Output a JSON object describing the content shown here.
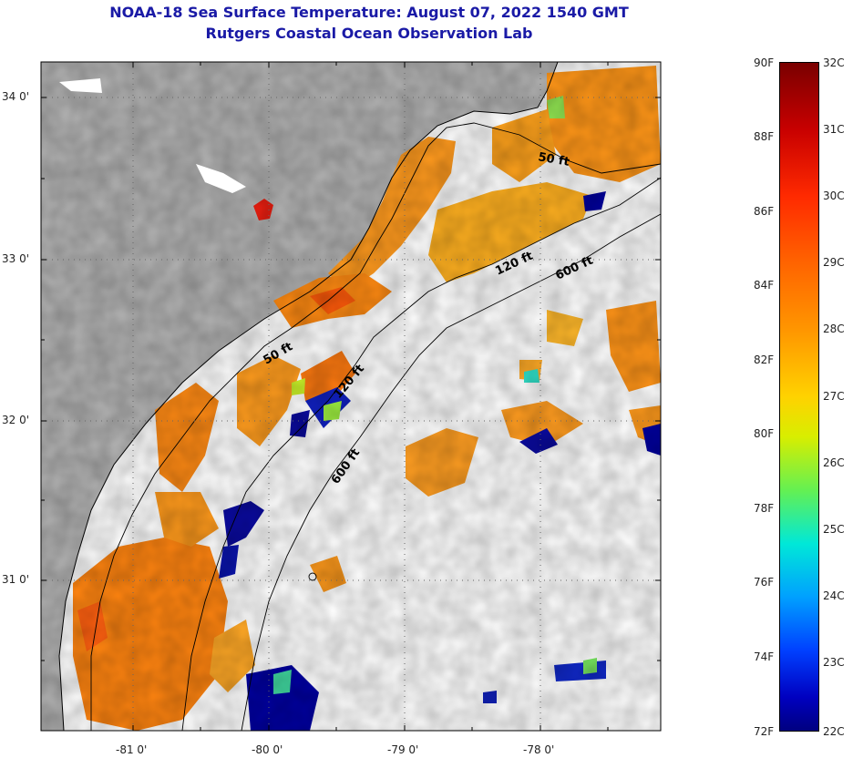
{
  "title": {
    "line1": "NOAA-18 Sea Surface Temperature:  August 07, 2022 1540 GMT",
    "line2": "Rutgers Coastal Ocean Observation Lab"
  },
  "map": {
    "lat_labels": [
      "34 0'",
      "33 0'",
      "32 0'",
      "31 0'"
    ],
    "lon_labels": [
      "-81 0'",
      "-80 0'",
      "-79 0'",
      "-78 0'"
    ],
    "contour_labels": [
      "50 ft",
      "120 ft",
      "600 ft",
      "50 ft",
      "120 ft",
      "600 ft"
    ],
    "colors": {
      "land": "#b2b2b2",
      "no_data": "#ffffff",
      "warm": "#ff8c00",
      "cold": "#0000a0"
    }
  },
  "colorbar": {
    "fahrenheit": [
      "90F",
      "88F",
      "86F",
      "84F",
      "82F",
      "80F",
      "78F",
      "76F",
      "74F",
      "72F"
    ],
    "celsius": [
      "32C",
      "31C",
      "30C",
      "29C",
      "28C",
      "27C",
      "26C",
      "25C",
      "24C",
      "23C",
      "22C"
    ]
  }
}
